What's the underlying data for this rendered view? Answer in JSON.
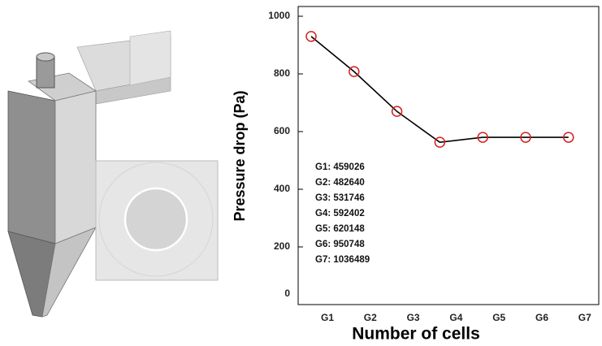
{
  "chart_data": {
    "type": "line",
    "x_label": "Number of cells",
    "y_label": "Pressure drop (Pa)",
    "categories": [
      "G1",
      "G2",
      "G3",
      "G4",
      "G5",
      "G6",
      "G7"
    ],
    "values": [
      930,
      808,
      670,
      563,
      580,
      580,
      580
    ],
    "color": "#000000",
    "marker_color": "#d42020",
    "ylim": [
      0,
      1000
    ],
    "yticks": [
      0,
      200,
      400,
      600,
      800,
      1000
    ],
    "annotations": [
      "G1: 459026",
      "G2: 482640",
      "G3: 531746",
      "G4: 592402",
      "G5: 620148",
      "G6: 950748",
      "G7: 1036489"
    ]
  }
}
